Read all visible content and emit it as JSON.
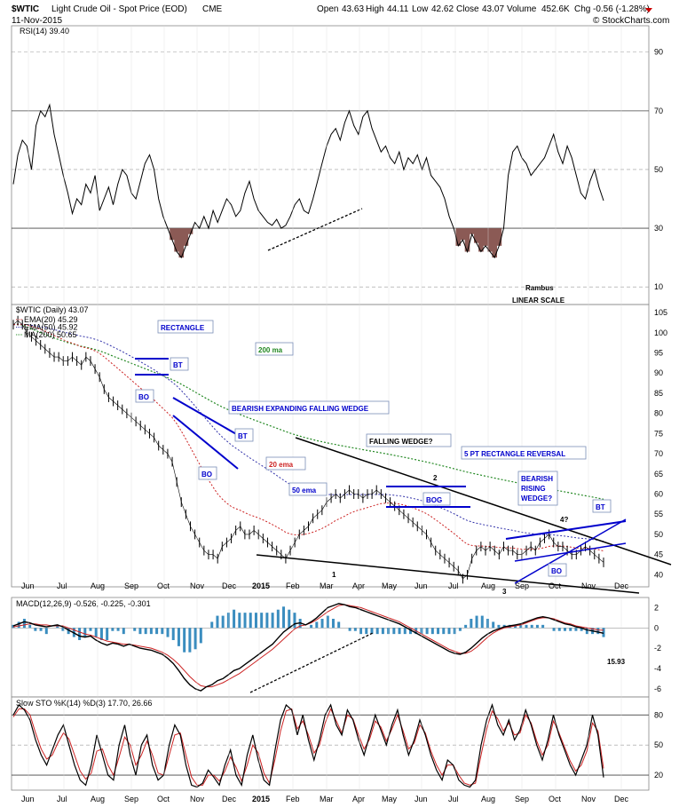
{
  "header": {
    "symbol": "$WTIC",
    "description": "Light Crude Oil - Spot Price (EOD)",
    "exchange": "CME",
    "date": "11-Nov-2015",
    "open_label": "Open",
    "open": "43.63",
    "high_label": "High",
    "high": "44.11",
    "low_label": "Low",
    "low": "42.62",
    "close_label": "Close",
    "close": "43.07",
    "volume_label": "Volume",
    "volume": "452.6K",
    "chg_label": "Chg",
    "chg": "-0.56 (-1.28%)",
    "copyright": "© StockCharts.com"
  },
  "colors": {
    "price": "#000000",
    "ema20": "#cc2222",
    "ema50": "#3333aa",
    "ma200": "#228822",
    "rsi_fill": "#8b5a55",
    "macd_hist": "#3a8dbf",
    "annotation_blue": "#0000cc",
    "stoch_d": "#cc2222"
  },
  "time_axis": {
    "labels": [
      "Jun",
      "Jul",
      "Aug",
      "Sep",
      "Oct",
      "Nov",
      "Dec",
      "2015",
      "Feb",
      "Mar",
      "Apr",
      "May",
      "Jun",
      "Jul",
      "Aug",
      "Sep",
      "Oct",
      "Nov",
      "Dec"
    ]
  },
  "chart_data": [
    {
      "type": "line",
      "panel": "rsi",
      "title": "RSI(14) 39.40",
      "y_ticks": [
        10,
        30,
        50,
        70,
        90
      ],
      "ylim": [
        4,
        99
      ],
      "overbought": 70,
      "oversold": 30,
      "annotations": [
        "Rambus",
        "LINEAR SCALE"
      ],
      "series": [
        {
          "values": [
            45,
            55,
            60,
            58,
            50,
            65,
            70,
            68,
            72,
            62,
            55,
            48,
            42,
            35,
            40,
            38,
            45,
            42,
            48,
            36,
            40,
            44,
            38,
            45,
            50,
            48,
            42,
            40,
            46,
            52,
            55,
            50,
            40,
            34,
            30,
            26,
            22,
            20,
            24,
            28,
            32,
            30,
            34,
            30,
            36,
            32,
            36,
            40,
            38,
            34,
            36,
            42,
            46,
            40,
            36,
            34,
            32,
            31,
            33,
            30,
            31,
            34,
            38,
            40,
            36,
            35,
            40,
            46,
            52,
            58,
            62,
            64,
            60,
            66,
            70,
            65,
            62,
            68,
            70,
            64,
            60,
            56,
            58,
            54,
            52,
            56,
            50,
            54,
            52,
            55,
            50,
            54,
            48,
            46,
            44,
            40,
            34,
            30,
            24,
            26,
            22,
            28,
            25,
            22,
            24,
            22,
            20,
            24,
            30,
            48,
            56,
            58,
            54,
            52,
            48,
            50,
            52,
            54,
            58,
            62,
            56,
            52,
            58,
            54,
            48,
            42,
            40,
            46,
            50,
            44,
            39.4
          ]
        }
      ]
    },
    {
      "type": "line",
      "panel": "price",
      "title": "$WTIC (Daily) 43.07",
      "legend": [
        {
          "name": "EMA(20) 45.29",
          "color": "#cc2222"
        },
        {
          "name": "EMA(50) 45.92",
          "color": "#3333aa"
        },
        {
          "name": "MA(200) 50.65",
          "color": "#228822"
        }
      ],
      "y_ticks": [
        40,
        45,
        50,
        55,
        60,
        65,
        70,
        75,
        80,
        85,
        90,
        95,
        100,
        105
      ],
      "ylim": [
        37,
        107
      ],
      "series": [
        {
          "name": "$WTIC (Daily) 43.07",
          "values": [
            102,
            103,
            102,
            100,
            99,
            98,
            97,
            96,
            95,
            94,
            94,
            93,
            93,
            94,
            93,
            92,
            94,
            93,
            91,
            89,
            86,
            84,
            83,
            82,
            81,
            80,
            79,
            78,
            77,
            76,
            75,
            74,
            72,
            71,
            70,
            68,
            63,
            58,
            55,
            52,
            50,
            48,
            46,
            45,
            45,
            44,
            47,
            48,
            49,
            51,
            52,
            50,
            50,
            51,
            50,
            49,
            48,
            47,
            46,
            45,
            44,
            46,
            48,
            50,
            51,
            52,
            54,
            55,
            56,
            58,
            59,
            60,
            59,
            60,
            61,
            60,
            60,
            59,
            60,
            60,
            61,
            60,
            59,
            58,
            57,
            56,
            55,
            54,
            53,
            52,
            51,
            50,
            48,
            46,
            45,
            44,
            43,
            42,
            41,
            39,
            40,
            44,
            46,
            47,
            46,
            47,
            46,
            45,
            47,
            46,
            46,
            45,
            45,
            46,
            47,
            46,
            48,
            49,
            50,
            48,
            47,
            47,
            46,
            45,
            45,
            46,
            47,
            46,
            45,
            44,
            43.07
          ]
        }
      ],
      "annotations": [
        "RECTANGLE",
        "BT",
        "BO",
        "BEARISH EXPANDING FALLING WEDGE",
        "BT",
        "BO",
        "200 ma",
        "20 ema",
        "50 ema",
        "FALLING WEDGE?",
        "5 PT RECTANGLE REVERSAL",
        "2",
        "BOG",
        "1",
        "BEARISH",
        "RISING",
        "WEDGE?",
        "4?",
        "BT",
        "BO",
        "3"
      ]
    },
    {
      "type": "line",
      "panel": "macd",
      "title": "MACD(12,26,9) -0.526, -0.225, -0.301",
      "y_ticks": [
        -6,
        -4,
        -2,
        0,
        2
      ],
      "ylim": [
        -6.8,
        3
      ],
      "value_label": "15.93",
      "series": [
        {
          "name": "MACD",
          "values": [
            0.2,
            0.4,
            0.6,
            0.5,
            0.3,
            0.2,
            0.1,
            0.2,
            0.3,
            0.1,
            -0.2,
            -0.5,
            -0.8,
            -0.9,
            -0.8,
            -1.2,
            -1.5,
            -1.7,
            -1.5,
            -1.6,
            -1.8,
            -1.6,
            -1.8,
            -2.0,
            -2.1,
            -2.2,
            -2.4,
            -2.6,
            -3.0,
            -3.5,
            -4.2,
            -5.0,
            -5.6,
            -6.0,
            -6.2,
            -5.8,
            -5.6,
            -5.2,
            -5.0,
            -4.6,
            -4.2,
            -4.0,
            -3.6,
            -3.2,
            -2.8,
            -2.4,
            -2.0,
            -1.6,
            -1.0,
            -0.4,
            0.0,
            0.4,
            0.5,
            0.3,
            0.6,
            1.0,
            1.5,
            2.0,
            2.2,
            2.4,
            2.3,
            2.1,
            2.0,
            1.8,
            1.6,
            1.4,
            1.2,
            1.0,
            0.8,
            0.6,
            0.4,
            0.1,
            -0.2,
            -0.5,
            -0.8,
            -1.1,
            -1.4,
            -1.7,
            -2.0,
            -2.3,
            -2.5,
            -2.6,
            -2.4,
            -2.0,
            -1.5,
            -1.0,
            -0.6,
            -0.3,
            -0.1,
            0.1,
            0.2,
            0.3,
            0.4,
            0.6,
            0.8,
            1.0,
            1.1,
            1.0,
            0.8,
            0.6,
            0.4,
            0.3,
            0.1,
            0.0,
            -0.2,
            -0.3,
            -0.4,
            -0.526
          ]
        },
        {
          "name": "Signal",
          "values": [
            0.1,
            0.2,
            0.3,
            0.4,
            0.4,
            0.3,
            0.3,
            0.2,
            0.2,
            0.2,
            0.0,
            -0.2,
            -0.4,
            -0.6,
            -0.7,
            -0.9,
            -1.1,
            -1.3,
            -1.4,
            -1.5,
            -1.6,
            -1.6,
            -1.7,
            -1.8,
            -1.9,
            -2.0,
            -2.2,
            -2.4,
            -2.7,
            -3.1,
            -3.6,
            -4.2,
            -4.8,
            -5.3,
            -5.7,
            -5.8,
            -5.8,
            -5.6,
            -5.4,
            -5.1,
            -4.8,
            -4.5,
            -4.1,
            -3.7,
            -3.3,
            -2.9,
            -2.5,
            -2.1,
            -1.6,
            -1.1,
            -0.6,
            -0.1,
            0.2,
            0.3,
            0.5,
            0.8,
            1.2,
            1.6,
            1.9,
            2.2,
            2.3,
            2.2,
            2.1,
            2.0,
            1.8,
            1.6,
            1.4,
            1.2,
            1.0,
            0.8,
            0.6,
            0.3,
            0.0,
            -0.3,
            -0.6,
            -0.9,
            -1.2,
            -1.5,
            -1.8,
            -2.1,
            -2.3,
            -2.5,
            -2.5,
            -2.3,
            -1.9,
            -1.4,
            -0.9,
            -0.5,
            -0.2,
            0.0,
            0.1,
            0.2,
            0.3,
            0.5,
            0.7,
            0.9,
            1.0,
            1.0,
            0.9,
            0.7,
            0.5,
            0.4,
            0.2,
            0.1,
            0.0,
            -0.1,
            -0.2,
            -0.225
          ]
        }
      ]
    },
    {
      "type": "line",
      "panel": "stochastic",
      "title": "Slow STO %K(14) %D(3) 17.70, 26.66",
      "y_ticks": [
        20,
        50,
        80
      ],
      "ylim": [
        5,
        98
      ],
      "series": [
        {
          "name": "%K",
          "values": [
            80,
            90,
            85,
            75,
            55,
            40,
            30,
            45,
            60,
            70,
            50,
            30,
            15,
            10,
            30,
            60,
            40,
            20,
            15,
            50,
            70,
            40,
            20,
            50,
            60,
            30,
            15,
            20,
            50,
            70,
            60,
            30,
            10,
            8,
            12,
            25,
            18,
            10,
            30,
            45,
            20,
            10,
            40,
            60,
            35,
            15,
            10,
            45,
            75,
            90,
            85,
            60,
            80,
            55,
            35,
            55,
            80,
            90,
            70,
            60,
            85,
            75,
            55,
            40,
            60,
            80,
            65,
            50,
            70,
            85,
            60,
            40,
            55,
            75,
            60,
            40,
            25,
            15,
            35,
            30,
            15,
            10,
            8,
            15,
            50,
            75,
            90,
            70,
            60,
            75,
            55,
            65,
            85,
            70,
            50,
            35,
            55,
            80,
            60,
            45,
            30,
            20,
            35,
            50,
            80,
            60,
            17.7
          ]
        },
        {
          "name": "%D",
          "values": [
            78,
            86,
            86,
            80,
            62,
            46,
            36,
            40,
            52,
            62,
            56,
            40,
            24,
            16,
            22,
            44,
            46,
            30,
            20,
            38,
            58,
            50,
            30,
            40,
            54,
            40,
            22,
            20,
            40,
            60,
            62,
            40,
            18,
            10,
            10,
            20,
            20,
            14,
            24,
            38,
            28,
            14,
            30,
            50,
            42,
            22,
            12,
            36,
            64,
            84,
            86,
            66,
            74,
            60,
            42,
            50,
            72,
            86,
            74,
            62,
            80,
            76,
            60,
            46,
            56,
            74,
            68,
            54,
            66,
            80,
            64,
            46,
            52,
            70,
            62,
            44,
            30,
            20,
            30,
            30,
            20,
            12,
            10,
            12,
            40,
            66,
            84,
            76,
            64,
            72,
            60,
            62,
            80,
            72,
            54,
            40,
            50,
            74,
            62,
            48,
            34,
            24,
            30,
            44,
            72,
            64,
            26.66
          ]
        }
      ]
    }
  ]
}
